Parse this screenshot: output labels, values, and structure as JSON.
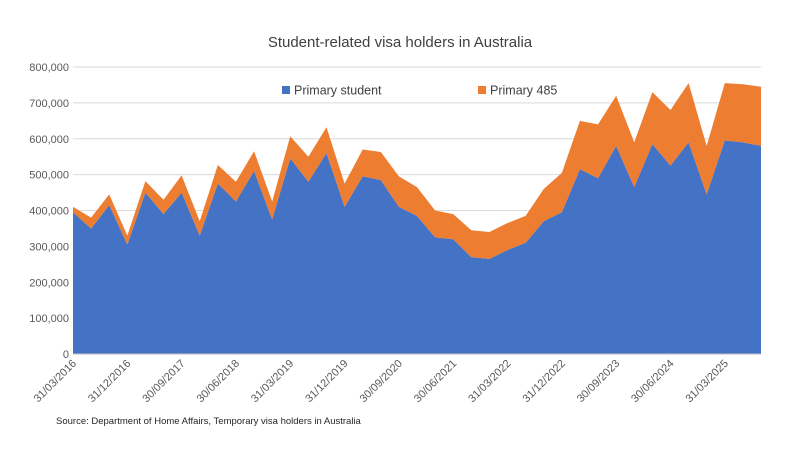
{
  "chart_data": {
    "type": "area",
    "stacked": true,
    "title": "Student-related visa holders in Australia",
    "source": "Source: Department of Home Affairs, Temporary visa holders in Australia",
    "ylim": [
      0,
      800000
    ],
    "y_ticks": [
      "0",
      "100,000",
      "200,000",
      "300,000",
      "400,000",
      "500,000",
      "600,000",
      "700,000",
      "800,000"
    ],
    "x_tick_labels": [
      "31/03/2016",
      "31/12/2016",
      "30/09/2017",
      "30/06/2018",
      "31/03/2019",
      "31/12/2019",
      "30/09/2020",
      "30/06/2021",
      "31/03/2022",
      "31/12/2022",
      "30/09/2023",
      "30/06/2024",
      "31/03/2025"
    ],
    "x_tick_label_every": 3,
    "legend_position": "top",
    "grid": true,
    "series": [
      {
        "name": "Primary student",
        "color": "#4472C4",
        "values": [
          395000,
          350000,
          415000,
          305000,
          450000,
          390000,
          450000,
          330000,
          475000,
          425000,
          510000,
          375000,
          545000,
          480000,
          560000,
          410000,
          495000,
          485000,
          410000,
          385000,
          325000,
          320000,
          270000,
          265000,
          290000,
          310000,
          370000,
          395000,
          515000,
          490000,
          580000,
          465000,
          585000,
          525000,
          590000,
          445000,
          595000,
          590000,
          580000
        ]
      },
      {
        "name": "Primary 485",
        "color": "#ED7D31",
        "values": [
          15000,
          30000,
          30000,
          25000,
          32000,
          40000,
          48000,
          40000,
          52000,
          55000,
          55000,
          50000,
          62000,
          70000,
          72000,
          65000,
          75000,
          78000,
          85000,
          80000,
          75000,
          70000,
          75000,
          75000,
          75000,
          75000,
          90000,
          110000,
          135000,
          150000,
          140000,
          125000,
          145000,
          155000,
          165000,
          135000,
          160000,
          162000,
          165000
        ]
      }
    ]
  }
}
